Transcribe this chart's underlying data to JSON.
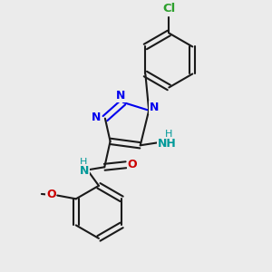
{
  "bg_color": "#ebebeb",
  "bond_color": "#1a1a1a",
  "N_color": "#0000ee",
  "O_color": "#cc0000",
  "Cl_color": "#2ca02c",
  "NH_color": "#009999",
  "font_size": 9.0,
  "lw": 1.5,
  "xlim": [
    0.05,
    0.95
  ],
  "ylim": [
    0.03,
    0.97
  ]
}
